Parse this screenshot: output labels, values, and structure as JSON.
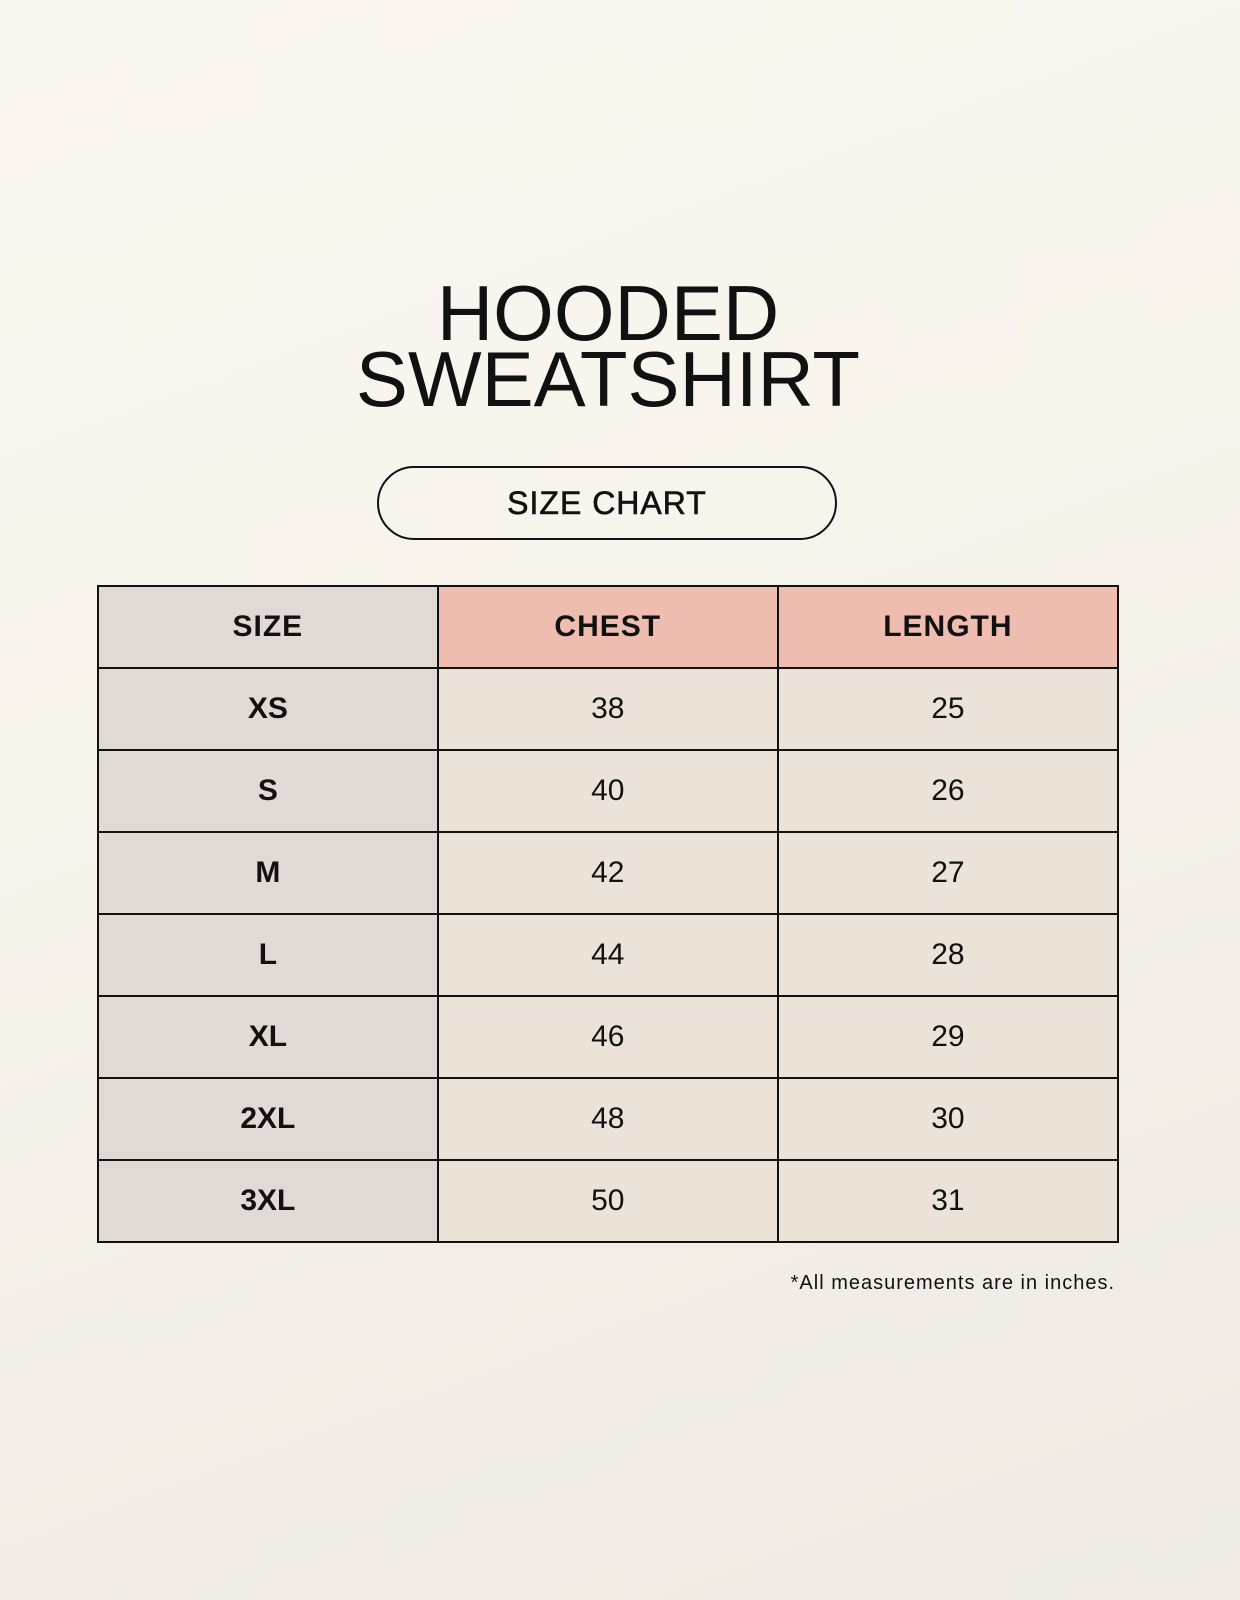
{
  "title": {
    "line1": "HOODED",
    "line2": "SWEATSHIRT"
  },
  "subtitle": "SIZE CHART",
  "table": {
    "headers": [
      "SIZE",
      "CHEST",
      "LENGTH"
    ],
    "rows": [
      [
        "XS",
        "38",
        "25"
      ],
      [
        "S",
        "40",
        "26"
      ],
      [
        "M",
        "42",
        "27"
      ],
      [
        "L",
        "44",
        "28"
      ],
      [
        "XL",
        "46",
        "29"
      ],
      [
        "2XL",
        "48",
        "30"
      ],
      [
        "3XL",
        "50",
        "31"
      ]
    ]
  },
  "note": "*All measurements are in inches.",
  "colors": {
    "size_column": "#e1d9d3",
    "measure_header": "#eebdb0",
    "cell": "#ebe3d8",
    "background": "#f8f5ee"
  }
}
